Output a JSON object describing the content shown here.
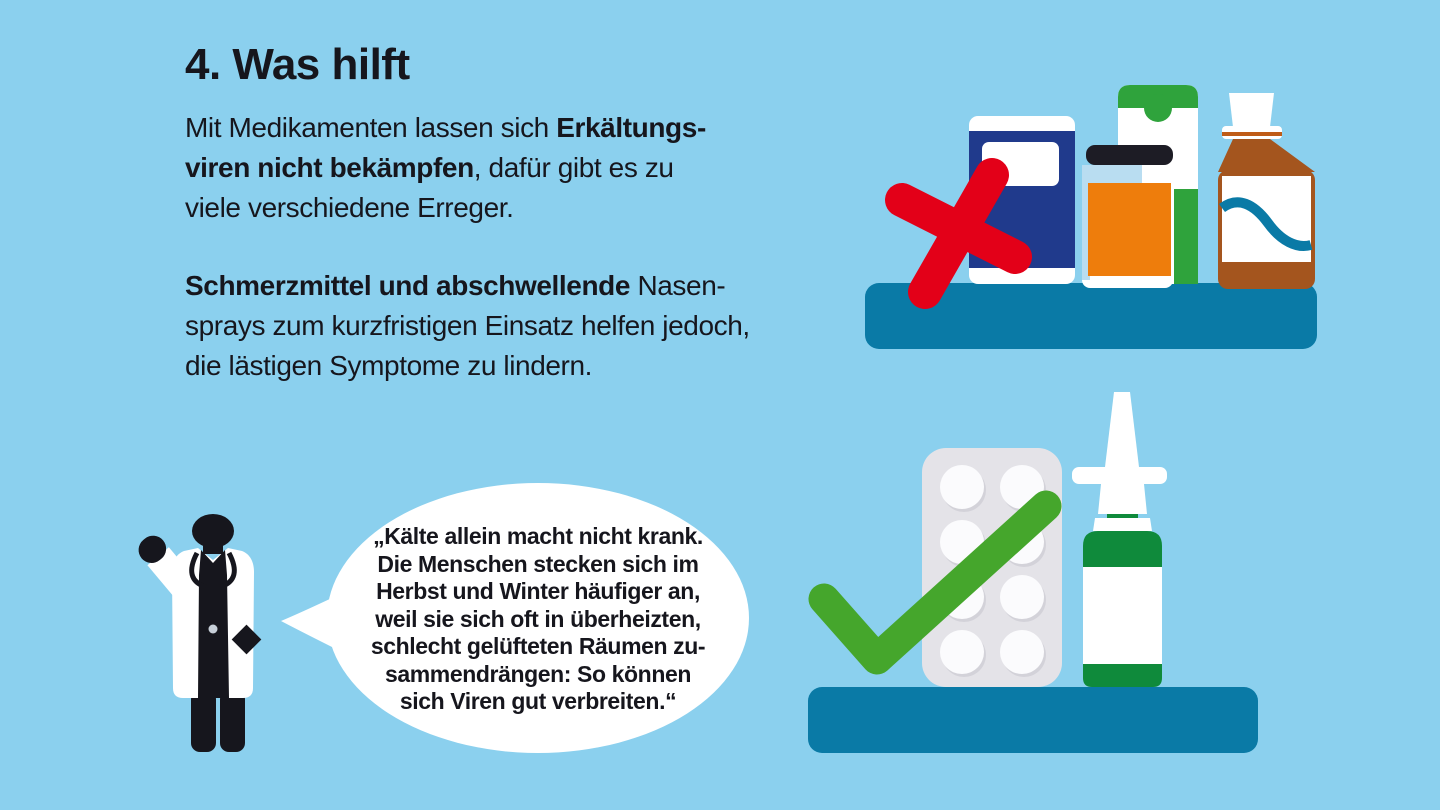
{
  "header": {
    "title": "4. Was hilft"
  },
  "intro": {
    "segments": [
      {
        "text": "Mit Medikamenten lassen sich ",
        "bold": false
      },
      {
        "text": "Erkältungs-\nviren nicht bekämpfen",
        "bold": true
      },
      {
        "text": ", dafür gibt es zu\nviele verschiedene Erreger.",
        "bold": false
      }
    ]
  },
  "advice": {
    "segments": [
      {
        "text": "Schmerzmittel und abschwellende",
        "bold": true
      },
      {
        "text": " Nasen-\nsprays zum kurzfristigen Einsatz helfen jedoch,\ndie lästigen Symptome zu lindern.",
        "bold": false
      }
    ]
  },
  "quote": {
    "text": "„Kälte allein macht nicht krank.\nDie Menschen stecken sich im\nHerbst und Winter häufiger an,\nweil sie sich oft in überheizten,\nschlecht gelüfteten Räumen zu-\nsammendrängen: So können\nsich Viren gut verbreiten.“"
  },
  "icons": {
    "top_shelf_symbol": "x-mark-icon",
    "bottom_shelf_symbol": "check-mark-icon",
    "speaker": "doctor-pictogram-icon"
  },
  "colors": {
    "background": "#8bd0ee",
    "ink": "#16161d",
    "shelf": "#0a7aa6",
    "cross_red": "#e30018",
    "check_green": "#45a62c",
    "box_navy": "#203a8c",
    "jar_orange": "#ee7d0c",
    "pack_green": "#2fa33c",
    "spray_green": "#0f8a3b",
    "syrup_brown": "#a4551e",
    "blister_gray": "#e4e3e8",
    "glass_blue": "#b9ddf1"
  }
}
